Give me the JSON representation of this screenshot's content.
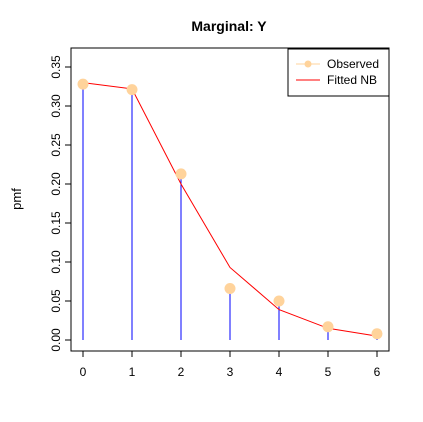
{
  "chart_data": {
    "type": "line",
    "title": "Marginal: Y",
    "xlabel": "",
    "ylabel": "pmf",
    "x": [
      0,
      1,
      2,
      3,
      4,
      5,
      6
    ],
    "xlim": [
      0,
      6
    ],
    "ylim": [
      0,
      0.35
    ],
    "x_ticks": [
      "0",
      "1",
      "2",
      "3",
      "4",
      "5",
      "6"
    ],
    "y_ticks": [
      "0.00",
      "0.05",
      "0.10",
      "0.15",
      "0.20",
      "0.25",
      "0.30",
      "0.35"
    ],
    "grid": false,
    "legend_position": "top-right",
    "series": [
      {
        "name": "Observed",
        "style": "points with vertical lines",
        "point_color": "#FFD39B",
        "line_color": "#0000FF",
        "values": [
          0.328,
          0.321,
          0.213,
          0.066,
          0.05,
          0.017,
          0.008
        ]
      },
      {
        "name": "Fitted NB",
        "style": "line",
        "line_color": "#FF0000",
        "values": [
          0.33,
          0.322,
          0.2,
          0.093,
          0.039,
          0.015,
          0.005
        ]
      }
    ]
  }
}
